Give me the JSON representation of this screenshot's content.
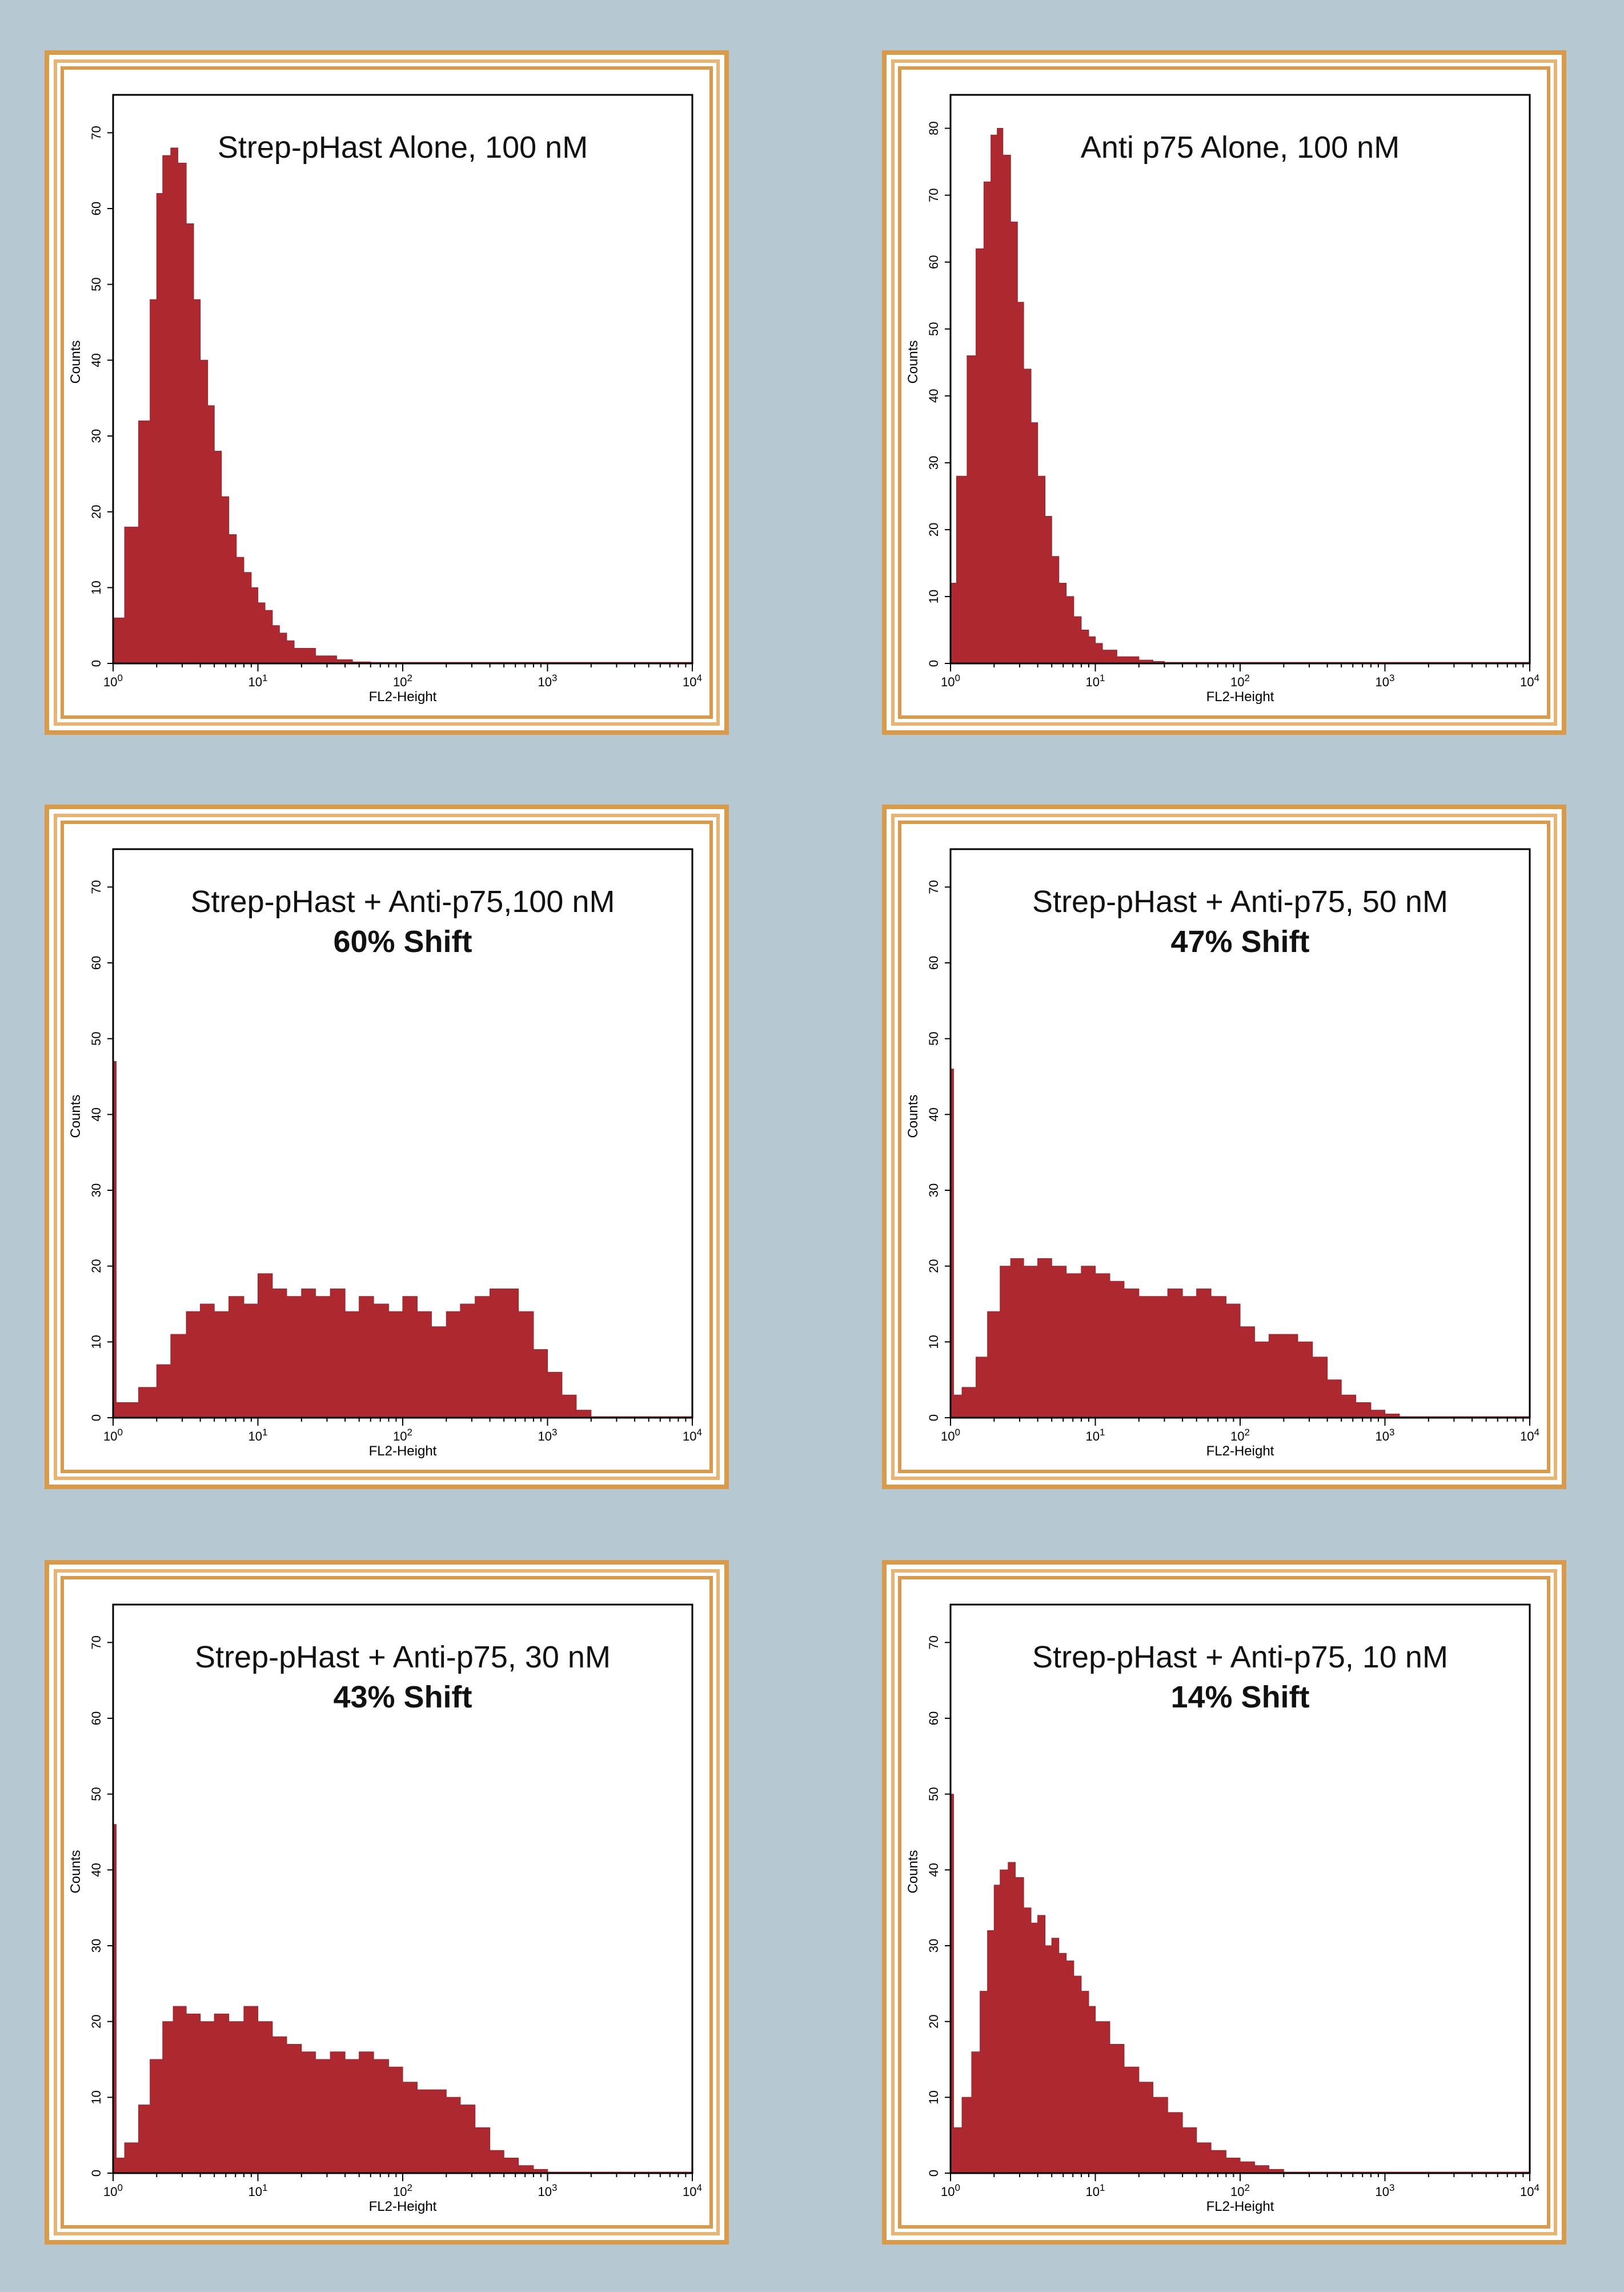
{
  "colors": {
    "background": "#b6c9d2",
    "frame": "#d99a4a",
    "histogram": "#ae2830"
  },
  "chart_data": [
    {
      "type": "area",
      "title": "Strep-pHast Alone, 100 nM",
      "subtitle": "",
      "xlabel": "FL2-Height",
      "ylabel": "Counts",
      "xscale": "log",
      "xlim": [
        1,
        10000
      ],
      "ylim": [
        0,
        75
      ],
      "yticks": [
        0,
        10,
        20,
        30,
        40,
        50,
        60,
        70
      ],
      "xtick_labels": [
        "10^0",
        "10^1",
        "10^2",
        "10^3",
        "10^4"
      ],
      "x": [
        1.0,
        1.2,
        1.5,
        1.8,
        2.0,
        2.2,
        2.5,
        2.8,
        3.2,
        3.6,
        4.0,
        4.5,
        5.0,
        5.6,
        6.3,
        7.1,
        8.0,
        9.0,
        10.0,
        11.2,
        12.6,
        14.1,
        15.8,
        17.8,
        20.0,
        25.0,
        35.0,
        45.0,
        60.0
      ],
      "y": [
        6,
        18,
        32,
        48,
        62,
        67,
        68,
        66,
        58,
        48,
        40,
        34,
        28,
        22,
        17,
        14,
        12,
        10,
        8,
        7,
        5,
        4,
        3,
        2,
        2,
        1,
        0.5,
        0.2,
        0
      ],
      "series": [
        {
          "values": [
            6,
            18,
            32,
            48,
            62,
            67,
            68,
            66,
            58,
            48,
            40,
            34,
            28,
            22,
            17,
            14,
            12,
            10,
            8,
            7,
            5,
            4,
            3,
            2,
            2,
            1,
            0.5,
            0.2,
            0
          ]
        }
      ]
    },
    {
      "type": "area",
      "title": "Anti p75 Alone, 100 nM",
      "subtitle": "",
      "xlabel": "FL2-Height",
      "ylabel": "Counts",
      "xscale": "log",
      "xlim": [
        1,
        10000
      ],
      "ylim": [
        0,
        85
      ],
      "yticks": [
        0,
        10,
        20,
        30,
        40,
        50,
        60,
        70,
        80
      ],
      "xtick_labels": [
        "10^0",
        "10^1",
        "10^2",
        "10^3",
        "10^4"
      ],
      "x": [
        1.0,
        1.1,
        1.3,
        1.5,
        1.7,
        1.9,
        2.1,
        2.3,
        2.6,
        2.9,
        3.2,
        3.6,
        4.0,
        4.5,
        5.0,
        5.6,
        6.3,
        7.1,
        8.0,
        9.0,
        10.0,
        11.2,
        12.6,
        14.1,
        15.8,
        20.0,
        25.0,
        30.0
      ],
      "y": [
        12,
        28,
        46,
        62,
        72,
        79,
        80,
        76,
        66,
        54,
        44,
        36,
        28,
        22,
        16,
        12,
        10,
        7,
        5,
        4,
        3,
        2,
        2,
        1,
        1,
        0.5,
        0.3,
        0
      ],
      "series": [
        {
          "values": [
            12,
            28,
            46,
            62,
            72,
            79,
            80,
            76,
            66,
            54,
            44,
            36,
            28,
            22,
            16,
            12,
            10,
            7,
            5,
            4,
            3,
            2,
            2,
            1,
            1,
            0.5,
            0.3,
            0
          ]
        }
      ]
    },
    {
      "type": "area",
      "title": "Strep-pHast + Anti-p75,100 nM",
      "subtitle": "60% Shift",
      "xlabel": "FL2-Height",
      "ylabel": "Counts",
      "xscale": "log",
      "xlim": [
        1,
        10000
      ],
      "ylim": [
        0,
        75
      ],
      "yticks": [
        0,
        10,
        20,
        30,
        40,
        50,
        60,
        70
      ],
      "xtick_labels": [
        "10^0",
        "10^1",
        "10^2",
        "10^3",
        "10^4"
      ],
      "x": [
        1.0,
        1.05,
        1.2,
        1.5,
        2.0,
        2.5,
        3.2,
        4.0,
        5.0,
        6.3,
        8.0,
        10.0,
        12.6,
        15.8,
        20.0,
        25.0,
        31.6,
        40.0,
        50.0,
        63.0,
        80.0,
        100.0,
        126.0,
        158.0,
        200.0,
        250.0,
        316.0,
        400.0,
        500.0,
        630.0,
        800.0,
        1000.0,
        1260.0,
        1580.0,
        2000.0
      ],
      "y": [
        47,
        2,
        2,
        4,
        7,
        11,
        14,
        15,
        14,
        16,
        15,
        19,
        17,
        16,
        17,
        16,
        17,
        14,
        16,
        15,
        14,
        16,
        14,
        12,
        14,
        15,
        16,
        17,
        17,
        14,
        9,
        6,
        3,
        1,
        0
      ],
      "series": [
        {
          "values": [
            47,
            2,
            2,
            4,
            7,
            11,
            14,
            15,
            14,
            16,
            15,
            19,
            17,
            16,
            17,
            16,
            17,
            14,
            16,
            15,
            14,
            16,
            14,
            12,
            14,
            15,
            16,
            17,
            17,
            14,
            9,
            6,
            3,
            1,
            0
          ]
        }
      ]
    },
    {
      "type": "area",
      "title": "Strep-pHast + Anti-p75, 50 nM",
      "subtitle": "47% Shift",
      "xlabel": "FL2-Height",
      "ylabel": "Counts",
      "xscale": "log",
      "xlim": [
        1,
        10000
      ],
      "ylim": [
        0,
        75
      ],
      "yticks": [
        0,
        10,
        20,
        30,
        40,
        50,
        60,
        70
      ],
      "xtick_labels": [
        "10^0",
        "10^1",
        "10^2",
        "10^3",
        "10^4"
      ],
      "x": [
        1.0,
        1.05,
        1.2,
        1.5,
        1.8,
        2.2,
        2.6,
        3.2,
        4.0,
        5.0,
        6.3,
        8.0,
        10.0,
        12.6,
        15.8,
        20.0,
        25.0,
        31.6,
        40.0,
        50.0,
        63.0,
        80.0,
        100.0,
        126.0,
        158.0,
        200.0,
        250.0,
        316.0,
        400.0,
        500.0,
        630.0,
        800.0,
        1000.0,
        1260.0
      ],
      "y": [
        46,
        3,
        4,
        8,
        14,
        20,
        21,
        20,
        21,
        20,
        19,
        20,
        19,
        18,
        17,
        16,
        16,
        17,
        16,
        17,
        16,
        15,
        12,
        10,
        11,
        11,
        10,
        8,
        5,
        3,
        2,
        1,
        0.5,
        0
      ],
      "series": [
        {
          "values": [
            46,
            3,
            4,
            8,
            14,
            20,
            21,
            20,
            21,
            20,
            19,
            20,
            19,
            18,
            17,
            16,
            16,
            17,
            16,
            17,
            16,
            15,
            12,
            10,
            11,
            11,
            10,
            8,
            5,
            3,
            2,
            1,
            0.5,
            0
          ]
        }
      ]
    },
    {
      "type": "area",
      "title": "Strep-pHast + Anti-p75, 30 nM",
      "subtitle": "43% Shift",
      "xlabel": "FL2-Height",
      "ylabel": "Counts",
      "xscale": "log",
      "xlim": [
        1,
        10000
      ],
      "ylim": [
        0,
        75
      ],
      "yticks": [
        0,
        10,
        20,
        30,
        40,
        50,
        60,
        70
      ],
      "xtick_labels": [
        "10^0",
        "10^1",
        "10^2",
        "10^3",
        "10^4"
      ],
      "x": [
        1.0,
        1.05,
        1.2,
        1.5,
        1.8,
        2.2,
        2.6,
        3.2,
        4.0,
        5.0,
        6.3,
        8.0,
        10.0,
        12.6,
        15.8,
        20.0,
        25.0,
        31.6,
        40.0,
        50.0,
        63.0,
        80.0,
        100.0,
        126.0,
        158.0,
        200.0,
        250.0,
        316.0,
        400.0,
        500.0,
        630.0,
        800.0,
        1000.0
      ],
      "y": [
        46,
        2,
        4,
        9,
        15,
        20,
        22,
        21,
        20,
        21,
        20,
        22,
        20,
        18,
        17,
        16,
        15,
        16,
        15,
        16,
        15,
        14,
        12,
        11,
        11,
        10,
        9,
        6,
        3,
        2,
        1,
        0.5,
        0
      ],
      "series": [
        {
          "values": [
            46,
            2,
            4,
            9,
            15,
            20,
            22,
            21,
            20,
            21,
            20,
            22,
            20,
            18,
            17,
            16,
            15,
            16,
            15,
            16,
            15,
            14,
            12,
            11,
            11,
            10,
            9,
            6,
            3,
            2,
            1,
            0.5,
            0
          ]
        }
      ]
    },
    {
      "type": "area",
      "title": "Strep-pHast + Anti-p75, 10 nM",
      "subtitle": "14% Shift",
      "xlabel": "FL2-Height",
      "ylabel": "Counts",
      "xscale": "log",
      "xlim": [
        1,
        10000
      ],
      "ylim": [
        0,
        75
      ],
      "yticks": [
        0,
        10,
        20,
        30,
        40,
        50,
        60,
        70
      ],
      "xtick_labels": [
        "10^0",
        "10^1",
        "10^2",
        "10^3",
        "10^4"
      ],
      "x": [
        1.0,
        1.05,
        1.2,
        1.4,
        1.6,
        1.8,
        2.0,
        2.2,
        2.5,
        2.8,
        3.2,
        3.6,
        4.0,
        4.5,
        5.0,
        5.6,
        6.3,
        7.1,
        8.0,
        9.0,
        10.0,
        12.6,
        15.8,
        20.0,
        25.0,
        31.6,
        40.0,
        50.0,
        63.0,
        80.0,
        100.0,
        126.0,
        158.0,
        200.0
      ],
      "y": [
        50,
        6,
        10,
        16,
        24,
        32,
        38,
        40,
        41,
        39,
        35,
        33,
        34,
        30,
        31,
        29,
        28,
        26,
        24,
        22,
        20,
        17,
        14,
        12,
        10,
        8,
        6,
        4,
        3,
        2,
        1.5,
        1,
        0.5,
        0
      ],
      "series": [
        {
          "values": [
            50,
            6,
            10,
            16,
            24,
            32,
            38,
            40,
            41,
            39,
            35,
            33,
            34,
            30,
            31,
            29,
            28,
            26,
            24,
            22,
            20,
            17,
            14,
            12,
            10,
            8,
            6,
            4,
            3,
            2,
            1.5,
            1,
            0.5,
            0
          ]
        }
      ]
    }
  ]
}
